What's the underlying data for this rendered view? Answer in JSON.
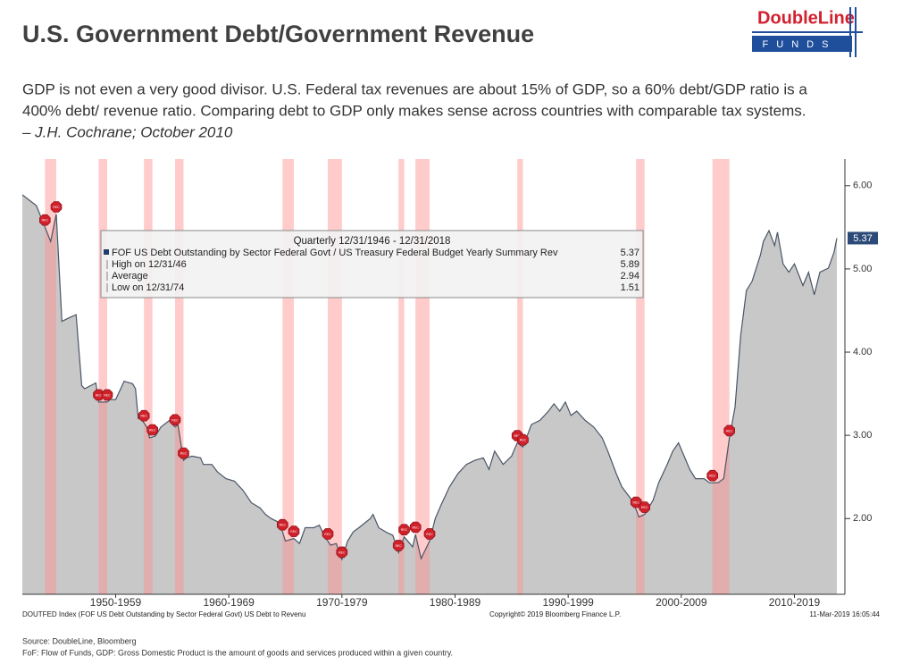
{
  "header": {
    "title": "U.S. Government Debt/Government Revenue",
    "logo_name": "DoubleLine",
    "logo_sub": "FUNDS",
    "quote": [
      "GDP is not even a very good divisor. U.S. Federal tax revenues are about 15% of GDP, so a 60% debt/GDP ratio is a",
      "400% debt/ revenue ratio. Comparing debt to GDP only makes sense across countries with comparable tax systems.",
      "– J.H. Cochrane; October 2010"
    ]
  },
  "chart_data": {
    "type": "area",
    "series": [
      {
        "name": "FOF US Debt Outstanding by Sector Federal Govt / US Treasury Federal Budget Yearly Summary Rev",
        "color": "#4a5566",
        "fill": "#c8c8c8",
        "x": [
          1946.75,
          1948,
          1949.25,
          1949.75,
          1950.25,
          1951,
          1951.5,
          1952,
          1952.25,
          1953.25,
          1953.5,
          1954.25,
          1954.5,
          1955,
          1955.75,
          1956.5,
          1956.75,
          1957,
          1957.25,
          1957.75,
          1958,
          1958.5,
          1959,
          1959.75,
          1960.25,
          1960.5,
          1961,
          1961.25,
          1961.75,
          1962.5,
          1962.75,
          1963.5,
          1964,
          1964.75,
          1965.5,
          1966.25,
          1967,
          1967.75,
          1968.25,
          1968.75,
          1969.5,
          1970,
          1970.75,
          1971.25,
          1971.75,
          1972.5,
          1973,
          1973.5,
          1974,
          1974.5,
          1975,
          1975.5,
          1976,
          1976.5,
          1977.5,
          1977.75,
          1978.25,
          1979,
          1979.5,
          1980,
          1980.5,
          1981.25,
          1981.5,
          1982,
          1982.75,
          1983.25,
          1983.75,
          1984.5,
          1985.25,
          1986,
          1986.75,
          1987.5,
          1988,
          1988.5,
          1989.25,
          1990,
          1990.5,
          1991,
          1991.75,
          1992.5,
          1993.25,
          1993.75,
          1994.25,
          1994.75,
          1995.25,
          1995.75,
          1996.5,
          1997.25,
          1998,
          1998.5,
          1999.25,
          1999.75,
          2000.75,
          2001.25,
          2001.75,
          2002.5,
          2003,
          2003.75,
          2004.25,
          2004.75,
          2005.25,
          2005.75,
          2006.25,
          2007,
          2007.5,
          2008.25,
          2008.75,
          2009.25,
          2009.75,
          2010.25,
          2010.75,
          2011.25,
          2012,
          2012.25,
          2012.75,
          2013.25,
          2013.5,
          2014,
          2014.5,
          2015,
          2015.75,
          2016.25,
          2016.75,
          2017.25,
          2018,
          2018.5,
          2018.75
        ],
        "values": [
          5.89,
          5.76,
          5.33,
          5.66,
          4.37,
          4.42,
          4.45,
          3.6,
          3.56,
          3.63,
          3.4,
          3.4,
          3.43,
          3.43,
          3.65,
          3.62,
          3.56,
          3.2,
          3.2,
          3.1,
          2.97,
          2.99,
          3.1,
          3.18,
          3.1,
          3.13,
          2.7,
          2.73,
          2.75,
          2.73,
          2.65,
          2.65,
          2.56,
          2.48,
          2.45,
          2.34,
          2.19,
          2.13,
          2.05,
          2,
          1.95,
          1.73,
          1.76,
          1.7,
          1.89,
          1.89,
          1.92,
          1.78,
          1.68,
          1.7,
          1.51,
          1.73,
          1.84,
          1.89,
          2,
          2.05,
          1.89,
          1.83,
          1.8,
          1.59,
          1.78,
          1.66,
          1.81,
          1.52,
          1.73,
          2,
          2.16,
          2.38,
          2.54,
          2.65,
          2.7,
          2.73,
          2.59,
          2.81,
          2.65,
          2.75,
          2.91,
          2.86,
          3.13,
          3.18,
          3.29,
          3.38,
          3.29,
          3.4,
          3.24,
          3.29,
          3.18,
          3.1,
          2.97,
          2.81,
          2.54,
          2.38,
          2.2,
          2.02,
          2.05,
          2.22,
          2.43,
          2.65,
          2.81,
          2.91,
          2.75,
          2.59,
          2.48,
          2.48,
          2.43,
          2.43,
          2.48,
          2.97,
          3.34,
          4.2,
          4.74,
          4.85,
          5.17,
          5.33,
          5.46,
          5.28,
          5.44,
          5.06,
          4.96,
          5.06,
          4.8,
          4.96,
          4.69,
          4.96,
          5.01,
          5.2,
          5.37
        ]
      }
    ],
    "recessions": [
      [
        1948.75,
        1949.75
      ],
      [
        1953.5,
        1954.25
      ],
      [
        1957.5,
        1958.25
      ],
      [
        1960.25,
        1961.0
      ],
      [
        1969.75,
        1970.75
      ],
      [
        1973.75,
        1975.0
      ],
      [
        1980.0,
        1980.5
      ],
      [
        1981.5,
        1982.75
      ],
      [
        1990.5,
        1991.0
      ],
      [
        2001.0,
        2001.75
      ],
      [
        2007.75,
        2009.25
      ]
    ],
    "recession_color": "#ff8c8c",
    "recession_marker": "REC",
    "xlim": [
      1946.75,
      2018.75
    ],
    "xticks": [
      {
        "value": 1955,
        "label": "1950-1959"
      },
      {
        "value": 1965,
        "label": "1960-1969"
      },
      {
        "value": 1975,
        "label": "1970-1979"
      },
      {
        "value": 1985,
        "label": "1980-1989"
      },
      {
        "value": 1995,
        "label": "1990-1999"
      },
      {
        "value": 2005,
        "label": "2000-2009"
      },
      {
        "value": 2015,
        "label": "2010-2019"
      }
    ],
    "ylim": [
      1.09,
      6.32
    ],
    "yticks": [
      {
        "value": 2,
        "label": "2.00"
      },
      {
        "value": 3,
        "label": "3.00"
      },
      {
        "value": 4,
        "label": "4.00"
      },
      {
        "value": 5,
        "label": "5.00"
      },
      {
        "value": 6,
        "label": "6.00"
      }
    ],
    "legend": {
      "title": "Quarterly 12/31/1946 - 12/31/2018",
      "rows": [
        {
          "label": "High on 12/31/46",
          "value": 5.89
        },
        {
          "label": "Average",
          "value": 2.94
        },
        {
          "label": "Low on 12/31/74",
          "value": 1.51
        }
      ]
    },
    "footer_left": "DOUTFED Index (FOF US Debt Outstanding by Sector Federal Govt) US Debt to Revenu",
    "footer_center": "Copyright© 2019 Bloomberg Finance L.P.",
    "footer_right": "11-Mar-2019 16:05:44"
  },
  "footer": {
    "source": "Source: DoubleLine, Bloomberg",
    "note": "FoF: Flow of Funds, GDP: Gross Domestic Product is the amount of goods and services produced within a given country."
  }
}
